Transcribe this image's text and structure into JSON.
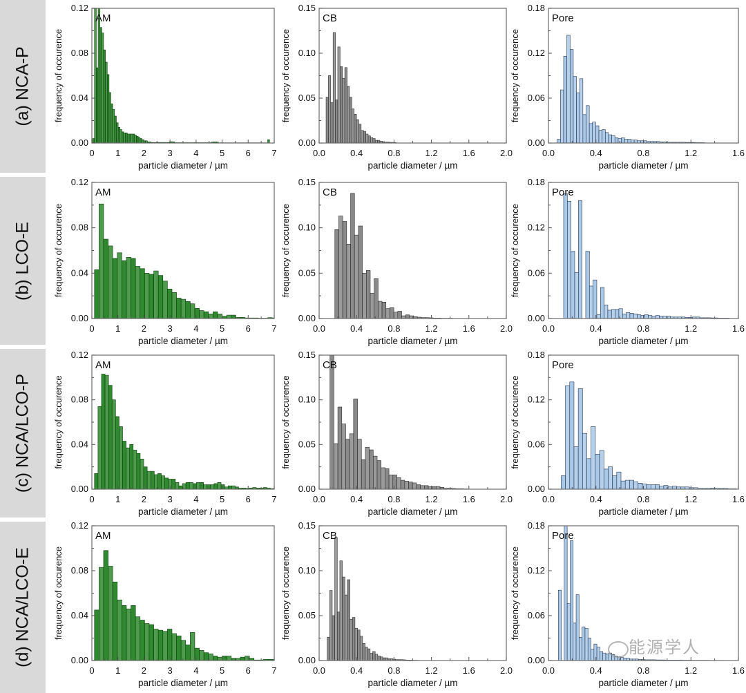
{
  "row_labels": [
    "(a) NCA-P",
    "(b) LCO-E",
    "(c) NCA/LCO-P",
    "(d) NCA/LCO-E"
  ],
  "watermark": "能源学人",
  "chart_data": [
    {
      "type": "bar",
      "panel_label": "AM",
      "xlabel": "particle diameter / µm",
      "ylabel": "frequency of occurence",
      "xlim": [
        0,
        7
      ],
      "ylim": [
        0,
        0.12
      ],
      "xticks": [
        "0",
        "1",
        "2",
        "3",
        "4",
        "5",
        "6",
        "7"
      ],
      "yticks": [
        "0.00",
        "0.04",
        "0.08",
        "0.12"
      ],
      "color": "#2f8a2f",
      "edge": "#0d3d0d",
      "bin_start": 0.03,
      "bin_width": 0.07,
      "values": [
        0.004,
        0.16,
        0.067,
        0.15,
        0.103,
        0.098,
        0.083,
        0.072,
        0.061,
        0.045,
        0.035,
        0.03,
        0.024,
        0.018,
        0.014,
        0.012,
        0.01,
        0.009,
        0.009,
        0.008,
        0.008,
        0.008,
        0.008,
        0.007,
        0.006,
        0.005,
        0.004,
        0.003,
        0.002,
        0.002,
        0.001,
        0.001,
        0.0005,
        0.0005,
        0.0005,
        0.0005,
        0.0005,
        0.0005,
        0.0005,
        0.0005,
        0.0005,
        0.0005,
        0.001,
        0.0012,
        0.001,
        0.0003,
        0.0003,
        0.0003,
        0.0003,
        0.0003,
        0.0003,
        0.0003,
        0.0003,
        0.0003,
        0.0003,
        0.0003,
        0.0003,
        0.0003,
        0.0003,
        0.0003,
        0.0003,
        0.0003,
        0.0003,
        0.0003,
        0.0003,
        0.0008,
        0.001,
        0.001,
        0.0008,
        0.0002,
        0.0002,
        0.0002,
        0.0002,
        0.0002,
        0.0002,
        0.0002,
        0.0002,
        0.0002,
        0.0002,
        0.0002,
        0.0002,
        0.0002,
        0.0002,
        0.0002,
        0.0002,
        0.0002,
        0.0002,
        0.0002,
        0.0002,
        0.0002,
        0.0002,
        0.0002,
        0.0002,
        0.0002,
        0.0002,
        0.0002,
        0.003,
        0,
        0
      ]
    },
    {
      "type": "bar",
      "panel_label": "CB",
      "xlabel": "particle diameter / µm",
      "ylabel": "frequency of occurence",
      "xlim": [
        0,
        2
      ],
      "ylim": [
        0,
        0.15
      ],
      "xticks": [
        "0.0",
        "0.4",
        "0.8",
        "1.2",
        "1.6",
        "2.0"
      ],
      "yticks": [
        "0.00",
        "0.05",
        "0.10",
        "0.15"
      ],
      "color": "#8a8a8a",
      "edge": "#2a2a2a",
      "bin_start": 0.074,
      "bin_width": 0.025,
      "values": [
        0.051,
        0.075,
        0.045,
        0.123,
        0.048,
        0.107,
        0.085,
        0.072,
        0.084,
        0.063,
        0.051,
        0.038,
        0.032,
        0.026,
        0.021,
        0.014,
        0.013,
        0.01,
        0.008,
        0.006,
        0.005,
        0.003,
        0.003,
        0.002,
        0.0015,
        0.001,
        0.001,
        0.0008,
        0.0005,
        0.0005
      ]
    },
    {
      "type": "bar",
      "panel_label": "Pore",
      "xlabel": "particle diameter / µm",
      "ylabel": "frequency of occurence",
      "xlim": [
        0,
        1.6
      ],
      "ylim": [
        0,
        0.18
      ],
      "xticks": [
        "0.0",
        "0.4",
        "0.8",
        "1.2",
        "1.6"
      ],
      "yticks": [
        "0.00",
        "0.06",
        "0.12",
        "0.18"
      ],
      "color": "#aac8e8",
      "edge": "#23364f",
      "bin_start": 0.074,
      "bin_width": 0.027,
      "values": [
        0.005,
        0.071,
        0.116,
        0.144,
        0.125,
        0.089,
        0.067,
        0.086,
        0.038,
        0.05,
        0.026,
        0.028,
        0.023,
        0.017,
        0.018,
        0.014,
        0.011,
        0.01,
        0.007,
        0.006,
        0.007,
        0.005,
        0.005,
        0.004,
        0.004,
        0.003,
        0.003,
        0.003,
        0.002,
        0.002,
        0.002,
        0.002,
        0.0015,
        0.0015,
        0.001,
        0.001,
        0.001,
        0.001,
        0.001,
        0.001,
        0.0008,
        0.0008,
        0.0008,
        0.0005,
        0.0005,
        0.0005
      ]
    },
    {
      "type": "bar",
      "panel_label": "AM",
      "xlabel": "particle diameter / µm",
      "ylabel": "frequency of occurence",
      "xlim": [
        0,
        7
      ],
      "ylim": [
        0,
        0.12
      ],
      "xticks": [
        "0",
        "1",
        "2",
        "3",
        "4",
        "5",
        "6",
        "7"
      ],
      "yticks": [
        "0.00",
        "0.04",
        "0.08",
        "0.12"
      ],
      "color": "#2f8a2f",
      "edge": "#0d3d0d",
      "bin_start": 0.1,
      "bin_width": 0.175,
      "values": [
        0.043,
        0.101,
        0.07,
        0.064,
        0.053,
        0.058,
        0.051,
        0.054,
        0.053,
        0.046,
        0.044,
        0.04,
        0.039,
        0.042,
        0.038,
        0.033,
        0.026,
        0.023,
        0.018,
        0.017,
        0.015,
        0.013,
        0.009,
        0.007,
        0.006,
        0.004,
        0.006,
        0.004,
        0.002,
        0.003,
        0.003,
        0.001,
        0.001,
        0.0005,
        0.0005,
        0.0005,
        0.0003,
        0.0003,
        0.0008,
        0.0005
      ]
    },
    {
      "type": "bar",
      "panel_label": "CB",
      "xlabel": "particle diameter / µm",
      "ylabel": "frequency of occurence",
      "xlim": [
        0,
        2
      ],
      "ylim": [
        0,
        0.15
      ],
      "xticks": [
        "0.0",
        "0.4",
        "0.8",
        "1.2",
        "1.6",
        "2.0"
      ],
      "yticks": [
        "0.00",
        "0.05",
        "0.10",
        "0.15"
      ],
      "color": "#8a8a8a",
      "edge": "#2a2a2a",
      "bin_start": 0.168,
      "bin_width": 0.042,
      "values": [
        0.098,
        0.113,
        0.107,
        0.082,
        0.138,
        0.092,
        0.102,
        0.05,
        0.053,
        0.028,
        0.044,
        0.019,
        0.018,
        0.011,
        0.012,
        0.007,
        0.008,
        0.003,
        0.004,
        0.003,
        0.002,
        0.0015,
        0.001,
        0.001,
        0.0008,
        0.0005,
        0.0005,
        0.0003,
        0.0003,
        0.0003
      ]
    },
    {
      "type": "bar",
      "panel_label": "Pore",
      "xlabel": "particle diameter / µm",
      "ylabel": "frequency of occurence",
      "xlim": [
        0,
        1.6
      ],
      "ylim": [
        0,
        0.18
      ],
      "xticks": [
        "0.0",
        "0.4",
        "0.8",
        "1.2",
        "1.6"
      ],
      "yticks": [
        "0.00",
        "0.06",
        "0.12",
        "0.18"
      ],
      "color": "#aac8e8",
      "edge": "#23364f",
      "bin_start": 0.128,
      "bin_width": 0.031,
      "values": [
        0.165,
        0.155,
        0.089,
        0.061,
        0.156,
        0,
        0.089,
        0.043,
        0.051,
        0.005,
        0.041,
        0.018,
        0.011,
        0.012,
        0.012,
        0.013,
        0.006,
        0.008,
        0.007,
        0.006,
        0.005,
        0.004,
        0.005,
        0.004,
        0.003,
        0.004,
        0.003,
        0.003,
        0.003,
        0.002,
        0.002,
        0.002,
        0.002,
        0.0015,
        0.0015,
        0.002,
        0.002,
        0.001,
        0.001,
        0.001,
        0.0008,
        0.0008,
        0.0005,
        0.0005,
        0.0005
      ]
    },
    {
      "type": "bar",
      "panel_label": "AM",
      "xlabel": "particle diameter / µm",
      "ylabel": "frequency of occurence",
      "xlim": [
        0,
        7
      ],
      "ylim": [
        0,
        0.12
      ],
      "xticks": [
        "0",
        "1",
        "2",
        "3",
        "4",
        "5",
        "6",
        "7"
      ],
      "yticks": [
        "0.00",
        "0.04",
        "0.08",
        "0.12"
      ],
      "color": "#2f8a2f",
      "edge": "#0d3d0d",
      "bin_start": 0.1,
      "bin_width": 0.135,
      "values": [
        0.014,
        0.074,
        0.103,
        0.102,
        0.093,
        0.08,
        0.065,
        0.056,
        0.043,
        0.037,
        0.04,
        0.035,
        0.032,
        0.027,
        0.02,
        0.016,
        0.016,
        0.013,
        0.014,
        0.012,
        0.01,
        0.009,
        0.009,
        0.006,
        0.003,
        0.005,
        0.006,
        0.006,
        0.005,
        0.006,
        0.006,
        0.004,
        0.004,
        0.004,
        0.005,
        0.006,
        0.004,
        0.002,
        0.003,
        0.003,
        0.002,
        0.001,
        0.001,
        0.0008,
        0.001,
        0.0015,
        0.001,
        0.001,
        0.0015,
        0.001,
        0.0005
      ]
    },
    {
      "type": "bar",
      "panel_label": "CB",
      "xlabel": "particle diameter / µm",
      "ylabel": "frequency of occurence",
      "xlim": [
        0,
        2
      ],
      "ylim": [
        0,
        0.15
      ],
      "xticks": [
        "0.0",
        "0.4",
        "0.8",
        "1.2",
        "1.6",
        "2.0"
      ],
      "yticks": [
        "0.00",
        "0.05",
        "0.10",
        "0.15"
      ],
      "color": "#8a8a8a",
      "edge": "#2a2a2a",
      "bin_start": 0.116,
      "bin_width": 0.042,
      "values": [
        0.17,
        0.051,
        0.092,
        0.073,
        0.056,
        0.062,
        0.101,
        0.056,
        0.033,
        0.047,
        0.044,
        0.037,
        0.032,
        0.024,
        0.023,
        0.016,
        0.016,
        0.013,
        0.01,
        0.009,
        0.008,
        0.007,
        0.005,
        0.004,
        0.004,
        0.003,
        0.003,
        0.003,
        0.002,
        0.001,
        0.001,
        0.0008,
        0.0005,
        0.0005,
        0.0003
      ]
    },
    {
      "type": "bar",
      "panel_label": "Pore",
      "xlabel": "particle diameter / µm",
      "ylabel": "frequency of occurence",
      "xlim": [
        0,
        1.6
      ],
      "ylim": [
        0,
        0.18
      ],
      "xticks": [
        "0.0",
        "0.4",
        "0.8",
        "1.2",
        "1.6"
      ],
      "yticks": [
        "0.00",
        "0.06",
        "0.12",
        "0.18"
      ],
      "color": "#aac8e8",
      "edge": "#23364f",
      "bin_start": 0.107,
      "bin_width": 0.036,
      "values": [
        0.018,
        0.139,
        0.144,
        0.057,
        0.135,
        0.075,
        0.041,
        0.084,
        0.047,
        0.052,
        0.027,
        0.03,
        0.018,
        0.023,
        0.011,
        0.012,
        0.012,
        0.01,
        0.008,
        0.007,
        0.006,
        0.006,
        0.006,
        0.004,
        0.005,
        0.003,
        0.004,
        0.003,
        0.003,
        0.003,
        0.002,
        0.002,
        0.001,
        0.001,
        0.001,
        0.0015,
        0.001,
        0.001,
        0.001,
        0.0005,
        0.0005
      ]
    },
    {
      "type": "bar",
      "panel_label": "AM",
      "xlabel": "particle diameter / µm",
      "ylabel": "frequency of occurence",
      "xlim": [
        0,
        7
      ],
      "ylim": [
        0,
        0.12
      ],
      "xticks": [
        "0",
        "1",
        "2",
        "3",
        "4",
        "5",
        "6",
        "7"
      ],
      "yticks": [
        "0.00",
        "0.04",
        "0.08",
        "0.12"
      ],
      "color": "#2f8a2f",
      "edge": "#0d3d0d",
      "bin_start": 0.1,
      "bin_width": 0.175,
      "values": [
        0.045,
        0.083,
        0.098,
        0.084,
        0.07,
        0.054,
        0.049,
        0.046,
        0.049,
        0.039,
        0.036,
        0.033,
        0.032,
        0.028,
        0.027,
        0.026,
        0.028,
        0.024,
        0.022,
        0.018,
        0.014,
        0.025,
        0.011,
        0.009,
        0.007,
        0.006,
        0.004,
        0.003,
        0.004,
        0.004,
        0.002,
        0.002,
        0.003,
        0.004,
        0.002,
        0.0005,
        0.0005,
        0.001,
        0.001,
        0.001
      ]
    },
    {
      "type": "bar",
      "panel_label": "CB",
      "xlabel": "particle diameter / µm",
      "ylabel": "frequency of occurence",
      "xlim": [
        0,
        2
      ],
      "ylim": [
        0,
        0.15
      ],
      "xticks": [
        "0.0",
        "0.4",
        "0.8",
        "1.2",
        "1.6",
        "2.0"
      ],
      "yticks": [
        "0.00",
        "0.05",
        "0.10",
        "0.15"
      ],
      "color": "#8a8a8a",
      "edge": "#2a2a2a",
      "bin_start": 0.086,
      "bin_width": 0.027,
      "values": [
        0.026,
        0.078,
        0.05,
        0.137,
        0.054,
        0.111,
        0.093,
        0.073,
        0.09,
        0.046,
        0.048,
        0.036,
        0.034,
        0.027,
        0.019,
        0.015,
        0.013,
        0.008,
        0.01,
        0.007,
        0.005,
        0.004,
        0.003,
        0.003,
        0.002,
        0.002,
        0.0015,
        0.001,
        0.001,
        0.001,
        0.0008,
        0.0005,
        0.0005,
        0.0005,
        0.0003,
        0.0003
      ]
    },
    {
      "type": "bar",
      "panel_label": "Pore",
      "xlabel": "particle diameter / µm",
      "ylabel": "frequency of occurence",
      "xlim": [
        0,
        1.6
      ],
      "ylim": [
        0,
        0.18
      ],
      "xticks": [
        "0.0",
        "0.4",
        "0.8",
        "1.2",
        "1.6"
      ],
      "yticks": [
        "0.00",
        "0.06",
        "0.12",
        "0.18"
      ],
      "color": "#aac8e8",
      "edge": "#23364f",
      "bin_start": 0.083,
      "bin_width": 0.025,
      "values": [
        0.094,
        0,
        0.19,
        0.076,
        0.16,
        0.05,
        0.088,
        0.031,
        0.045,
        0.043,
        0.03,
        0.015,
        0.022,
        0.018,
        0.012,
        0.01,
        0.009,
        0.01,
        0.008,
        0.006,
        0.005,
        0.004,
        0.003,
        0.003,
        0.002,
        0.002,
        0.002,
        0.0015,
        0.0015,
        0.001,
        0.001,
        0.001,
        0.001,
        0.0008,
        0.0008,
        0.0008,
        0.0005,
        0.0005,
        0.0005,
        0.0005,
        0.0005,
        0.0005,
        0.0004,
        0.0004,
        0.0004,
        0.0003,
        0.0003,
        0.0003,
        0.0003,
        0.0003,
        0.0003,
        0.0002,
        0.0002,
        0.0002,
        0.0002,
        0.0002
      ]
    }
  ]
}
